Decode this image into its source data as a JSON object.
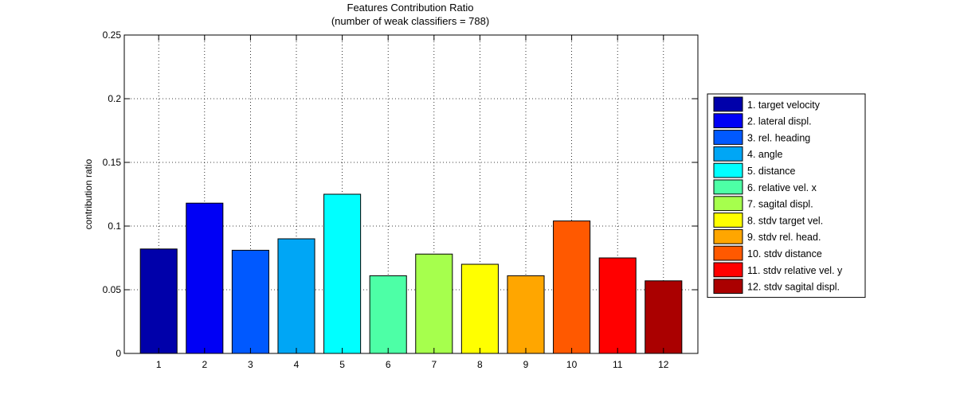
{
  "chart_data": {
    "type": "bar",
    "title": "Features Contribution Ratio",
    "subtitle": "(number of weak classifiers = 788)",
    "xlabel": "",
    "ylabel": "contribution ratio",
    "ylim": [
      0,
      0.25
    ],
    "yticks": [
      0,
      0.05,
      0.1,
      0.15,
      0.2,
      0.25
    ],
    "ytick_labels": [
      "0",
      "0.05",
      "0.1",
      "0.15",
      "0.2",
      "0.25"
    ],
    "categories": [
      "1",
      "2",
      "3",
      "4",
      "5",
      "6",
      "7",
      "8",
      "9",
      "10",
      "11",
      "12"
    ],
    "values": [
      0.082,
      0.118,
      0.081,
      0.09,
      0.125,
      0.061,
      0.078,
      0.07,
      0.061,
      0.104,
      0.075,
      0.057
    ],
    "colors": [
      "#0000aa",
      "#0000f5",
      "#0059ff",
      "#00a6f5",
      "#00ffff",
      "#4dffa6",
      "#a6ff4d",
      "#ffff00",
      "#ffa600",
      "#ff5900",
      "#ff0000",
      "#aa0000"
    ],
    "grid": true,
    "legend_position": "right",
    "legend": [
      "1. target velocity",
      "2. lateral displ.",
      "3. rel. heading",
      "4. angle",
      "5. distance",
      "6. relative vel. x",
      "7. sagital displ.",
      "8. stdv target vel.",
      "9. stdv rel. head.",
      "10. stdv distance",
      "11. stdv relative vel. y",
      "12. stdv sagital displ."
    ]
  }
}
